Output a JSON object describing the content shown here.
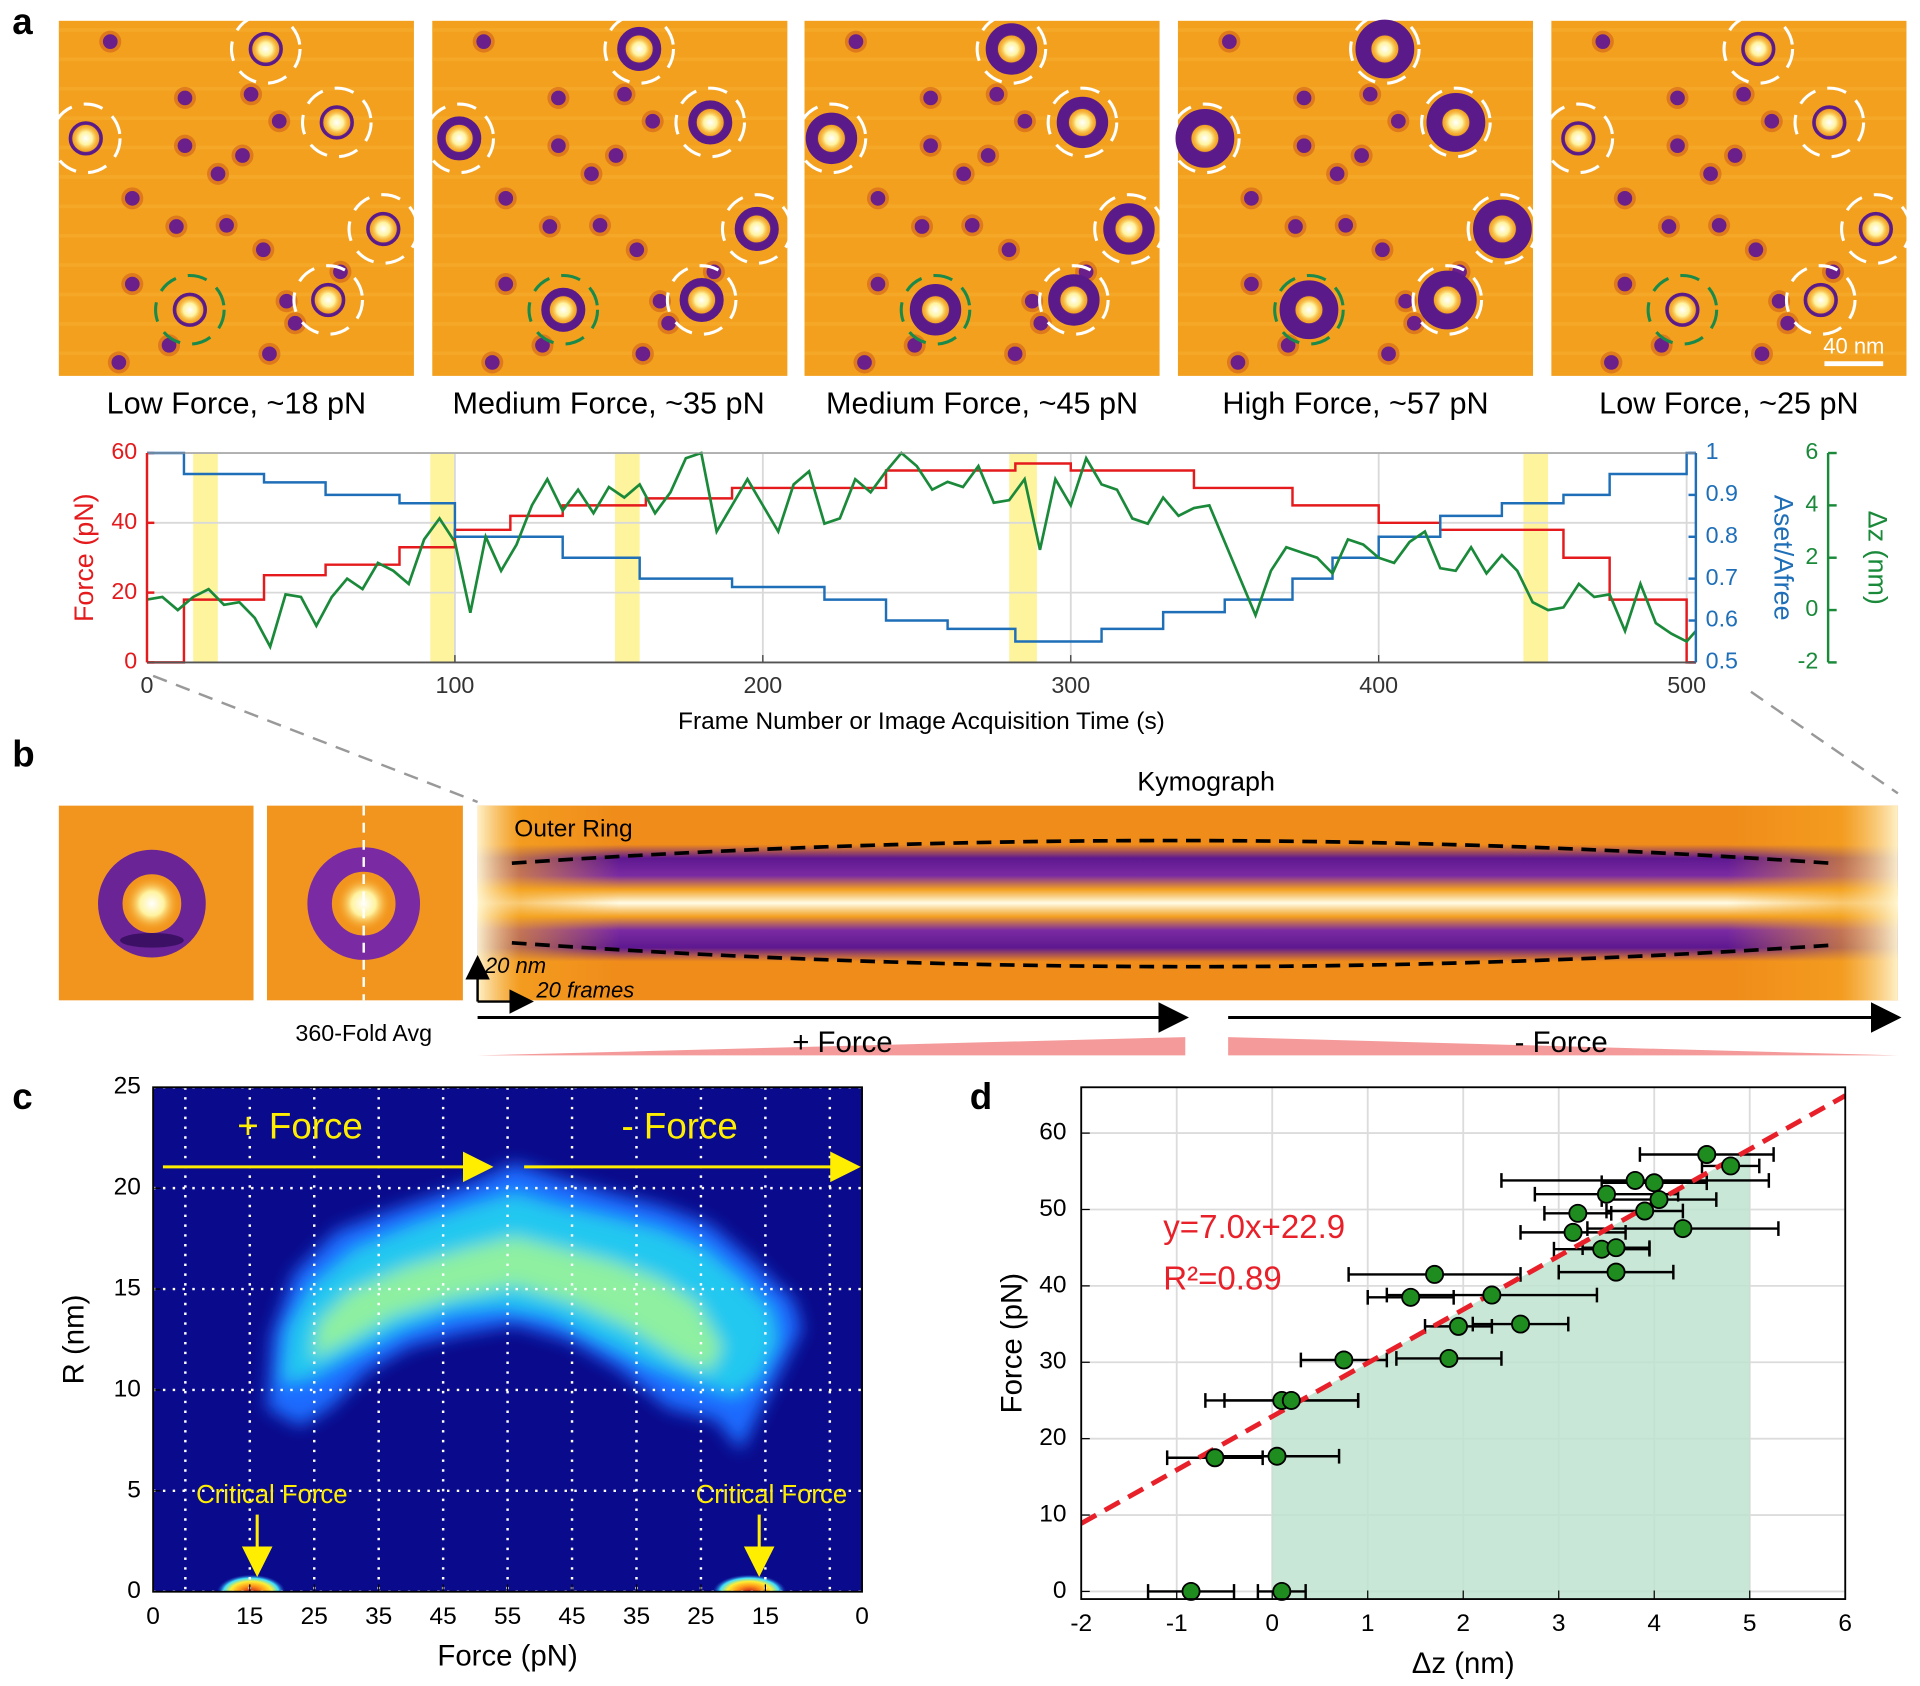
{
  "figure": {
    "panel_labels": [
      "a",
      "b",
      "c",
      "d"
    ],
    "panel_a": {
      "captions": [
        "Low Force, ~18 pN",
        "Medium Force, ~35 pN",
        "Medium Force, ~45 pN",
        "High Force, ~57 pN",
        "Low Force, ~25 pN"
      ],
      "scale_bar": "40 nm"
    },
    "panel_b": {
      "kymograph_title": "Kymograph",
      "outer_ring": "Outer Ring",
      "scale_y": "20 nm",
      "scale_x": "20 frames",
      "avg_label": "360-Fold Avg",
      "plus_force": "+ Force",
      "minus_force": "- Force"
    }
  },
  "chart_data": [
    {
      "type": "line",
      "xlabel": "Frame Number or Image Acquisition Time (s)",
      "ylabel": "Force (pN)",
      "y2label": "Aset/Afree",
      "y3label": "Δz (nm)",
      "xlim": [
        0,
        503
      ],
      "xticks": [
        0,
        100,
        200,
        300,
        400,
        500
      ],
      "ylim": [
        0,
        60
      ],
      "yticks": [
        0,
        20,
        40,
        60
      ],
      "y2lim": [
        0.5,
        1
      ],
      "y2ticks": [
        0.5,
        0.6,
        0.7,
        0.8,
        0.9,
        1
      ],
      "y3lim": [
        -2,
        6
      ],
      "y3ticks": [
        -2,
        0,
        2,
        4,
        6
      ],
      "grid": true,
      "highlights": [
        [
          15,
          23
        ],
        [
          92,
          100
        ],
        [
          152,
          160
        ],
        [
          280,
          289
        ],
        [
          447,
          455
        ]
      ],
      "highlight_color": "#fdf28c",
      "series": [
        {
          "axis": "y",
          "color": "#e41a1c",
          "x": [
            0,
            12,
            12,
            38,
            38,
            58,
            58,
            82,
            82,
            100,
            100,
            118,
            118,
            135,
            135,
            162,
            162,
            190,
            190,
            240,
            240,
            282,
            282,
            300,
            300,
            340,
            340,
            372,
            372,
            400,
            400,
            420,
            420,
            460,
            460,
            475,
            475,
            500,
            500,
            503
          ],
          "values": [
            0,
            0,
            18,
            18,
            25,
            25,
            28,
            28,
            33,
            33,
            38,
            38,
            42,
            42,
            45,
            45,
            47,
            47,
            50,
            50,
            55,
            55,
            57,
            57,
            55,
            55,
            50,
            50,
            45,
            45,
            40,
            40,
            38,
            38,
            30,
            30,
            18,
            18,
            0,
            0
          ]
        },
        {
          "axis": "y2",
          "color": "#1f6fb8",
          "x": [
            0,
            12,
            12,
            38,
            38,
            58,
            58,
            82,
            82,
            100,
            100,
            135,
            135,
            160,
            160,
            190,
            190,
            220,
            220,
            240,
            240,
            260,
            260,
            282,
            282,
            310,
            310,
            330,
            330,
            350,
            350,
            372,
            372,
            385,
            385,
            400,
            400,
            420,
            420,
            440,
            440,
            460,
            460,
            475,
            475,
            500,
            500,
            503
          ],
          "values": [
            1,
            1,
            0.95,
            0.95,
            0.93,
            0.93,
            0.9,
            0.9,
            0.88,
            0.88,
            0.8,
            0.8,
            0.75,
            0.75,
            0.7,
            0.7,
            0.68,
            0.68,
            0.65,
            0.65,
            0.6,
            0.6,
            0.58,
            0.58,
            0.55,
            0.55,
            0.58,
            0.58,
            0.62,
            0.62,
            0.65,
            0.65,
            0.7,
            0.7,
            0.75,
            0.75,
            0.8,
            0.8,
            0.85,
            0.85,
            0.88,
            0.88,
            0.9,
            0.9,
            0.95,
            0.95,
            1,
            1
          ]
        },
        {
          "axis": "y3",
          "color": "#1a8a3a",
          "x": [
            0,
            5,
            10,
            15,
            20,
            25,
            30,
            35,
            40,
            45,
            50,
            55,
            60,
            65,
            70,
            75,
            80,
            85,
            90,
            95,
            100,
            105,
            110,
            115,
            120,
            125,
            130,
            135,
            140,
            145,
            150,
            155,
            160,
            165,
            170,
            175,
            180,
            185,
            190,
            195,
            200,
            205,
            210,
            215,
            220,
            225,
            230,
            235,
            240,
            245,
            250,
            255,
            260,
            265,
            270,
            275,
            280,
            285,
            290,
            295,
            300,
            305,
            310,
            315,
            320,
            325,
            330,
            335,
            340,
            345,
            350,
            355,
            360,
            365,
            370,
            375,
            380,
            385,
            390,
            395,
            400,
            405,
            410,
            415,
            420,
            425,
            430,
            435,
            440,
            445,
            450,
            455,
            460,
            465,
            470,
            475,
            480,
            485,
            490,
            495,
            500,
            503
          ],
          "values": [
            0.4,
            0.5,
            0,
            0.5,
            0.8,
            0.2,
            0.3,
            -0.3,
            -1.4,
            0.6,
            0.5,
            -0.6,
            0.5,
            1.2,
            0.8,
            1.8,
            1.5,
            1,
            2.7,
            3.5,
            2.6,
            -0.1,
            2.8,
            1.5,
            2.5,
            4,
            5,
            3.8,
            4.6,
            3.7,
            4.7,
            4.3,
            4.8,
            3.7,
            4.5,
            5.8,
            6,
            3,
            4,
            5,
            4,
            3,
            4.8,
            5.3,
            3.3,
            3.5,
            5,
            4.5,
            5.3,
            6,
            5.5,
            4.6,
            4.9,
            4.7,
            5.5,
            4.1,
            4.2,
            5,
            2.3,
            5,
            4,
            5.8,
            4.8,
            4.6,
            3.5,
            3.3,
            4.3,
            3.6,
            3.9,
            4,
            2.6,
            1.2,
            -0.2,
            1.5,
            2.4,
            2.2,
            2,
            1.4,
            2.7,
            2.5,
            2,
            1.8,
            2.6,
            3,
            1.6,
            1.5,
            2.4,
            1.4,
            2.1,
            1.5,
            0.3,
            0,
            0.1,
            1,
            0.5,
            0.6,
            -0.8,
            1,
            -0.5,
            -0.9,
            -1.2,
            -0.8
          ]
        }
      ]
    },
    {
      "type": "heatmap",
      "xlabel": "Force (pN)",
      "ylabel": "R (nm)",
      "xlim": [
        0,
        11
      ],
      "xticks": [
        {
          "value": 0,
          "label": "0"
        },
        {
          "value": 1.5,
          "label": "15"
        },
        {
          "value": 2.5,
          "label": "25"
        },
        {
          "value": 3.5,
          "label": "35"
        },
        {
          "value": 4.5,
          "label": "45"
        },
        {
          "value": 5.5,
          "label": "55"
        },
        {
          "value": 6.5,
          "label": "45"
        },
        {
          "value": 7.5,
          "label": "35"
        },
        {
          "value": 8.5,
          "label": "25"
        },
        {
          "value": 9.5,
          "label": "15"
        },
        {
          "value": 11,
          "label": "0"
        }
      ],
      "xgrid": [
        0.5,
        1.5,
        2.5,
        3.5,
        4.5,
        5.5,
        6.5,
        7.5,
        8.5,
        9.5,
        10.5
      ],
      "ylim": [
        0,
        25
      ],
      "yticks": [
        0,
        5,
        10,
        15,
        20,
        25
      ],
      "grid": true,
      "annotations": [
        "+ Force",
        "- Force",
        "Critical Force",
        "Critical Force"
      ]
    },
    {
      "type": "scatter",
      "xlabel": "Δz (nm)",
      "ylabel": "Force (pN)",
      "xlim": [
        -2,
        6
      ],
      "xticks": [
        -2,
        -1,
        0,
        1,
        2,
        3,
        4,
        5,
        6
      ],
      "ylim": [
        -1,
        66
      ],
      "yticks": [
        0,
        10,
        20,
        30,
        40,
        50,
        60
      ],
      "grid": true,
      "color": "#1f8c1f",
      "x": [
        -0.85,
        0.1,
        -0.6,
        0.05,
        0.1,
        0.2,
        0.75,
        1.85,
        1.95,
        2.6,
        1.45,
        2.3,
        1.7,
        3.6,
        3.45,
        3.6,
        3.15,
        4.3,
        3.2,
        3.9,
        4.05,
        3.5,
        3.8,
        4.0,
        4.8,
        4.55
      ],
      "values": [
        0,
        0,
        17.5,
        17.7,
        25,
        25,
        30.3,
        30.5,
        34.7,
        35,
        38.5,
        38.8,
        41.5,
        41.8,
        44.8,
        45,
        47,
        47.5,
        49.5,
        49.8,
        51.3,
        52,
        53.8,
        53.5,
        55.7,
        57.2
      ],
      "xerr": [
        0.45,
        0.25,
        0.5,
        0.65,
        0.8,
        0.7,
        0.45,
        0.55,
        0.35,
        0.5,
        0.45,
        1.1,
        0.9,
        0.6,
        0.5,
        0.35,
        0.55,
        1.0,
        0.35,
        0.4,
        0.6,
        0.75,
        1.4,
        0.55,
        0.3,
        0.7
      ],
      "fit": {
        "slope": 7.0,
        "intercept": 22.9,
        "color": "#e8202a"
      },
      "shade_xrange": [
        0,
        5
      ],
      "shade_color": "#bfe3cf",
      "annotations": [
        "y=7.0x+22.9",
        "R²=0.89"
      ]
    }
  ]
}
